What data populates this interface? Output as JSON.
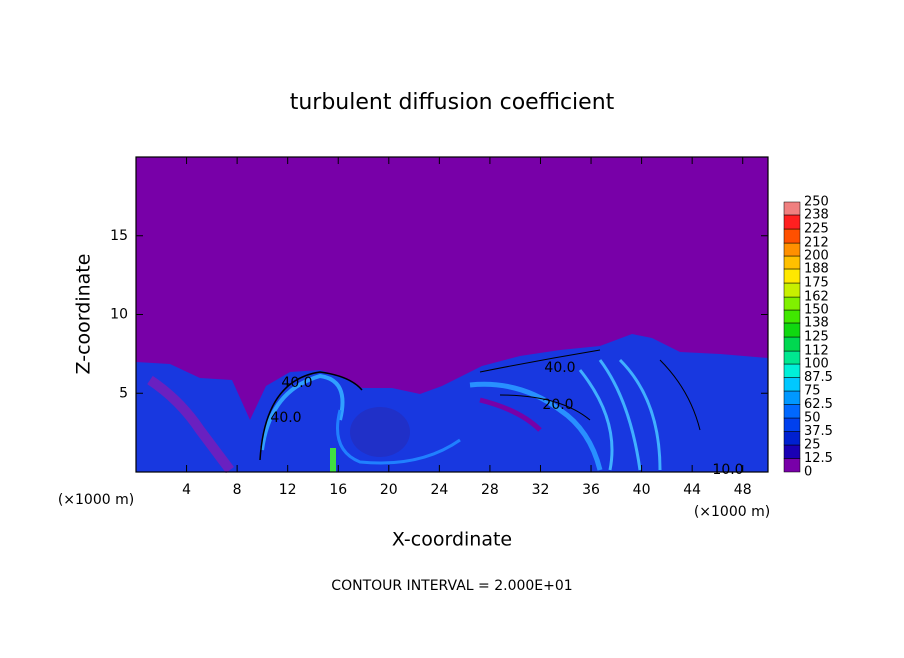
{
  "chart_data": {
    "type": "contour",
    "title": "turbulent diffusion coefficient",
    "xlabel": "X-coordinate",
    "ylabel": "Z-coordinate",
    "x_unit_label": "(×1000 m)",
    "footer": "CONTOUR INTERVAL = 2.000E+01",
    "xlim": [
      0,
      50
    ],
    "ylim": [
      0,
      20
    ],
    "xticks": [
      4,
      8,
      12,
      16,
      20,
      24,
      28,
      32,
      36,
      40,
      44,
      48
    ],
    "yticks": [
      5,
      10,
      15
    ],
    "background_color": "#7800a8",
    "contour_labels": [
      "40.0",
      "40.0",
      "40.0",
      "20.0",
      "10.0"
    ],
    "colorbar": {
      "levels": [
        0,
        12.5,
        25,
        37.5,
        50,
        62.5,
        75,
        87.5,
        100,
        112,
        125,
        138,
        150,
        162,
        175,
        188,
        200,
        212,
        225,
        238,
        250
      ],
      "colors": [
        "#7800a8",
        "#1a00b4",
        "#0020d0",
        "#0040ee",
        "#0068ff",
        "#0098ff",
        "#00c8ff",
        "#00f0d8",
        "#00e890",
        "#00d850",
        "#10d810",
        "#40e800",
        "#80f000",
        "#c8f000",
        "#ffe800",
        "#ffc000",
        "#ff9000",
        "#ff5000",
        "#ff2020",
        "#f08080"
      ]
    }
  }
}
